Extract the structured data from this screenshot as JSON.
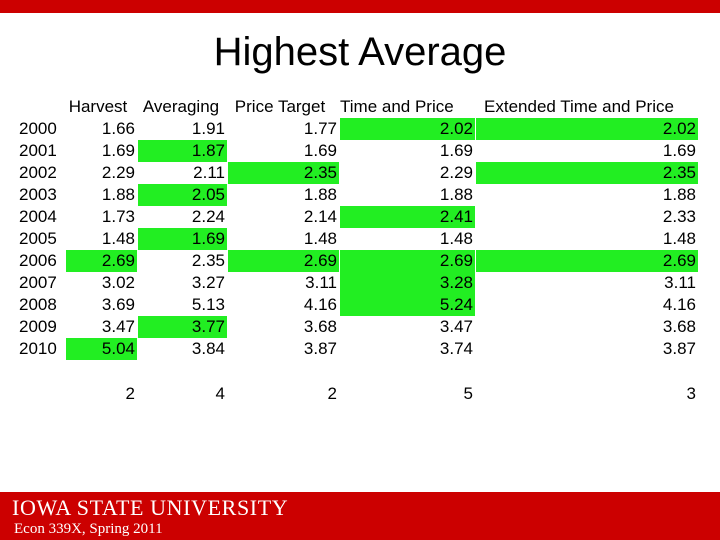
{
  "slide": {
    "title": "Highest Average",
    "footer_course": "Econ 339X, Spring 2011",
    "logo_text": "IOWA STATE UNIVERSITY",
    "colors": {
      "accent_red": "#cc0000",
      "highlight_green": "#22ee22"
    }
  },
  "table": {
    "headers": [
      "Harvest",
      "Averaging",
      "Price Target",
      "Time and Price",
      "Extended Time and Price"
    ],
    "rows": [
      {
        "year": "2000",
        "values": [
          "1.66",
          "1.91",
          "1.77",
          "2.02",
          "2.02"
        ],
        "highlight": [
          false,
          false,
          false,
          true,
          true
        ]
      },
      {
        "year": "2001",
        "values": [
          "1.69",
          "1.87",
          "1.69",
          "1.69",
          "1.69"
        ],
        "highlight": [
          false,
          true,
          false,
          false,
          false
        ]
      },
      {
        "year": "2002",
        "values": [
          "2.29",
          "2.11",
          "2.35",
          "2.29",
          "2.35"
        ],
        "highlight": [
          false,
          false,
          true,
          false,
          true
        ]
      },
      {
        "year": "2003",
        "values": [
          "1.88",
          "2.05",
          "1.88",
          "1.88",
          "1.88"
        ],
        "highlight": [
          false,
          true,
          false,
          false,
          false
        ]
      },
      {
        "year": "2004",
        "values": [
          "1.73",
          "2.24",
          "2.14",
          "2.41",
          "2.33"
        ],
        "highlight": [
          false,
          false,
          false,
          true,
          false
        ]
      },
      {
        "year": "2005",
        "values": [
          "1.48",
          "1.69",
          "1.48",
          "1.48",
          "1.48"
        ],
        "highlight": [
          false,
          true,
          false,
          false,
          false
        ]
      },
      {
        "year": "2006",
        "values": [
          "2.69",
          "2.35",
          "2.69",
          "2.69",
          "2.69"
        ],
        "highlight": [
          true,
          false,
          true,
          true,
          true
        ]
      },
      {
        "year": "2007",
        "values": [
          "3.02",
          "3.27",
          "3.11",
          "3.28",
          "3.11"
        ],
        "highlight": [
          false,
          false,
          false,
          true,
          false
        ]
      },
      {
        "year": "2008",
        "values": [
          "3.69",
          "5.13",
          "4.16",
          "5.24",
          "4.16"
        ],
        "highlight": [
          false,
          false,
          false,
          true,
          false
        ]
      },
      {
        "year": "2009",
        "values": [
          "3.47",
          "3.77",
          "3.68",
          "3.47",
          "3.68"
        ],
        "highlight": [
          false,
          true,
          false,
          false,
          false
        ]
      },
      {
        "year": "2010",
        "values": [
          "5.04",
          "3.84",
          "3.87",
          "3.74",
          "3.87"
        ],
        "highlight": [
          true,
          false,
          false,
          false,
          false
        ]
      }
    ],
    "counts": [
      "2",
      "4",
      "2",
      "5",
      "3"
    ]
  }
}
